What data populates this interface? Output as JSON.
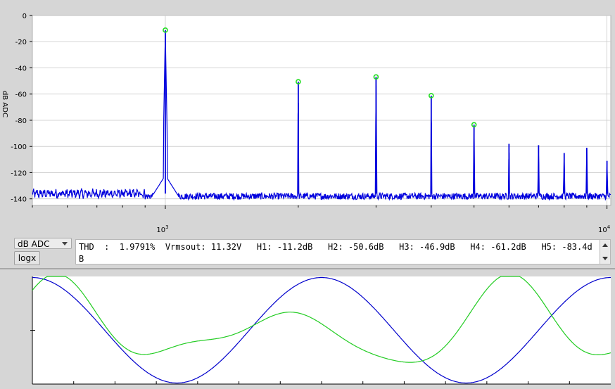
{
  "chart_data": [
    {
      "type": "line",
      "title": "",
      "xlabel": "",
      "ylabel": "dB ADC",
      "x_scale": "log",
      "xlim": [
        500,
        10200
      ],
      "ylim": [
        -145,
        0
      ],
      "y_ticks": [
        0,
        -20,
        -40,
        -60,
        -80,
        -100,
        -120,
        -140
      ],
      "x_ticks": [
        {
          "value": 1000,
          "base": "10",
          "exp": "3"
        },
        {
          "value": 10000,
          "base": "10",
          "exp": "4"
        }
      ],
      "grid": true,
      "series": [
        {
          "color": "#0000dd",
          "noise_floor": -138,
          "peaks": [
            {
              "x": 1000,
              "y": -11.2
            },
            {
              "x": 2000,
              "y": -50.6
            },
            {
              "x": 3000,
              "y": -46.9
            },
            {
              "x": 4000,
              "y": -61.2
            },
            {
              "x": 5000,
              "y": -83.4
            },
            {
              "x": 6000,
              "y": -98
            },
            {
              "x": 7000,
              "y": -99
            },
            {
              "x": 8000,
              "y": -105
            },
            {
              "x": 9000,
              "y": -101
            },
            {
              "x": 10000,
              "y": -111
            }
          ]
        }
      ],
      "markers": [
        {
          "x": 1000,
          "y": -11.2
        },
        {
          "x": 2000,
          "y": -50.6
        },
        {
          "x": 3000,
          "y": -46.9
        },
        {
          "x": 4000,
          "y": -61.2
        },
        {
          "x": 5000,
          "y": -83.4
        }
      ],
      "marker_color": "#22dd22"
    },
    {
      "type": "line",
      "title": "",
      "grid": false,
      "xlim": [
        0,
        1
      ],
      "ylim": [
        -1,
        1
      ],
      "series": [
        {
          "color": "#0000cc",
          "frequency_cycles": 2,
          "amplitude": 0.98,
          "phase": 0.25
        },
        {
          "color": "#22cc22",
          "frequency_cycles": 4,
          "amplitude": 0.95,
          "harmonic2": 0.12
        }
      ]
    }
  ],
  "controls": {
    "unit_select": "dB ADC",
    "logx_label": "logx",
    "thd_text": "THD  :  1.9791%  Vrmsout: 11.32V   H1: -11.2dB   H2: -50.6dB   H3: -46.9dB   H4: -61.2dB   H5: -83.4dB"
  }
}
